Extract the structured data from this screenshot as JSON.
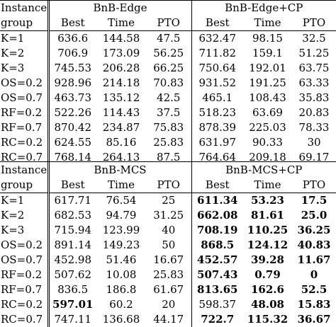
{
  "tables": [
    {
      "header_col": [
        "Instance",
        "group"
      ],
      "method_left": "BnB-Edge",
      "method_right": "BnB-Edge+CP",
      "subcols": [
        "Best",
        "Time",
        "PTO"
      ],
      "rows": [
        {
          "group": "K=1",
          "l": [
            "636.6",
            "144.58",
            "47.5"
          ],
          "r": [
            "632.47",
            "98.15",
            "32.5"
          ],
          "bold_l": [
            false,
            false,
            false
          ],
          "bold_r": [
            false,
            false,
            false
          ]
        },
        {
          "group": "K=2",
          "l": [
            "706.9",
            "173.09",
            "56.25"
          ],
          "r": [
            "711.82",
            "159.1",
            "51.25"
          ],
          "bold_l": [
            false,
            false,
            false
          ],
          "bold_r": [
            false,
            false,
            false
          ]
        },
        {
          "group": "K=3",
          "l": [
            "745.53",
            "206.28",
            "66.25"
          ],
          "r": [
            "750.64",
            "192.01",
            "63.75"
          ],
          "bold_l": [
            false,
            false,
            false
          ],
          "bold_r": [
            false,
            false,
            false
          ]
        },
        {
          "group": "OS=0.2",
          "l": [
            "928.96",
            "214.18",
            "70.83"
          ],
          "r": [
            "931.52",
            "191.25",
            "63.33"
          ],
          "bold_l": [
            false,
            false,
            false
          ],
          "bold_r": [
            false,
            false,
            false
          ]
        },
        {
          "group": "OS=0.7",
          "l": [
            "463.73",
            "135.12",
            "42.5"
          ],
          "r": [
            "465.1",
            "108.43",
            "35.83"
          ],
          "bold_l": [
            false,
            false,
            false
          ],
          "bold_r": [
            false,
            false,
            false
          ]
        },
        {
          "group": "RF=0.2",
          "l": [
            "522.26",
            "114.43",
            "37.5"
          ],
          "r": [
            "518.23",
            "63.69",
            "20.83"
          ],
          "bold_l": [
            false,
            false,
            false
          ],
          "bold_r": [
            false,
            false,
            false
          ]
        },
        {
          "group": "RF=0.7",
          "l": [
            "870.42",
            "234.87",
            "75.83"
          ],
          "r": [
            "878.39",
            "225.03",
            "78.33"
          ],
          "bold_l": [
            false,
            false,
            false
          ],
          "bold_r": [
            false,
            false,
            false
          ]
        },
        {
          "group": "RC=0.2",
          "l": [
            "624.55",
            "85.16",
            "25.83"
          ],
          "r": [
            "631.97",
            "90.33",
            "30"
          ],
          "bold_l": [
            false,
            false,
            false
          ],
          "bold_r": [
            false,
            false,
            false
          ]
        },
        {
          "group": "RC=0.7",
          "l": [
            "768.14",
            "264.13",
            "87.5"
          ],
          "r": [
            "764.64",
            "209.18",
            "69.17"
          ],
          "bold_l": [
            false,
            false,
            false
          ],
          "bold_r": [
            false,
            false,
            false
          ]
        }
      ]
    },
    {
      "header_col": [
        "Instance",
        "group"
      ],
      "method_left": "BnB-MCS",
      "method_right": "BnB-MCS+CP",
      "subcols": [
        "Best",
        "Time",
        "PTO"
      ],
      "rows": [
        {
          "group": "K=1",
          "l": [
            "617.71",
            "76.54",
            "25"
          ],
          "r": [
            "611.34",
            "53.23",
            "17.5"
          ],
          "bold_l": [
            false,
            false,
            false
          ],
          "bold_r": [
            true,
            true,
            true
          ]
        },
        {
          "group": "K=2",
          "l": [
            "682.53",
            "94.79",
            "31.25"
          ],
          "r": [
            "662.08",
            "81.61",
            "25.0"
          ],
          "bold_l": [
            false,
            false,
            false
          ],
          "bold_r": [
            true,
            true,
            true
          ]
        },
        {
          "group": "K=3",
          "l": [
            "715.94",
            "123.99",
            "40"
          ],
          "r": [
            "708.19",
            "110.25",
            "36.25"
          ],
          "bold_l": [
            false,
            false,
            false
          ],
          "bold_r": [
            true,
            true,
            true
          ]
        },
        {
          "group": "OS=0.2",
          "l": [
            "891.14",
            "149.23",
            "50"
          ],
          "r": [
            "868.5",
            "124.12",
            "40.83"
          ],
          "bold_l": [
            false,
            false,
            false
          ],
          "bold_r": [
            true,
            true,
            true
          ]
        },
        {
          "group": "OS=0.7",
          "l": [
            "452.98",
            "51.46",
            "16.67"
          ],
          "r": [
            "452.57",
            "39.28",
            "11.67"
          ],
          "bold_l": [
            false,
            false,
            false
          ],
          "bold_r": [
            true,
            true,
            true
          ]
        },
        {
          "group": "RF=0.2",
          "l": [
            "507.62",
            "10.08",
            "25.83"
          ],
          "r": [
            "507.43",
            "0.79",
            "0"
          ],
          "bold_l": [
            false,
            false,
            false
          ],
          "bold_r": [
            true,
            true,
            true
          ]
        },
        {
          "group": "RF=0.7",
          "l": [
            "836.5",
            "186.8",
            "61.67"
          ],
          "r": [
            "813.65",
            "162.6",
            "52.5"
          ],
          "bold_l": [
            false,
            false,
            false
          ],
          "bold_r": [
            true,
            true,
            true
          ]
        },
        {
          "group": "RC=0.2",
          "l": [
            "597.01",
            "60.2",
            "20"
          ],
          "r": [
            "598.37",
            "48.08",
            "15.83"
          ],
          "bold_l": [
            true,
            false,
            false
          ],
          "bold_r": [
            false,
            true,
            true
          ]
        },
        {
          "group": "RC=0.7",
          "l": [
            "747.11",
            "136.68",
            "44.17"
          ],
          "r": [
            "722.7",
            "115.32",
            "36.67"
          ],
          "bold_l": [
            false,
            false,
            false
          ],
          "bold_r": [
            true,
            true,
            true
          ]
        }
      ]
    }
  ]
}
